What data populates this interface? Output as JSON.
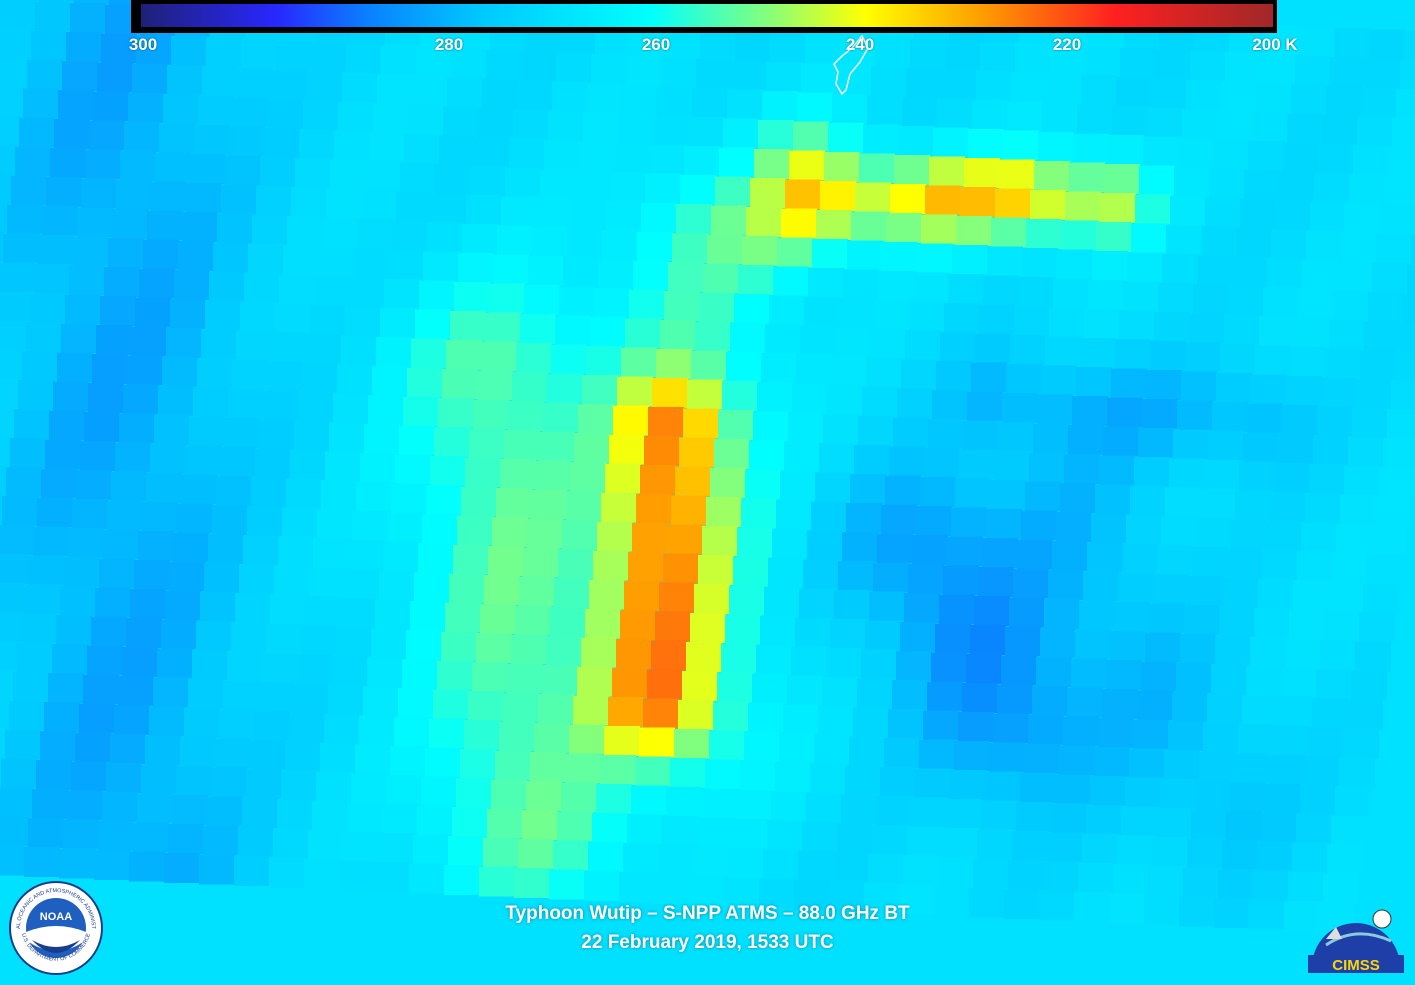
{
  "colorbar": {
    "labels": [
      "300",
      "280",
      "260",
      "240",
      "220",
      "200 K"
    ]
  },
  "caption": {
    "line1": "Typhoon Wutip – S-NPP ATMS – 88.0 GHz BT",
    "line2": "22 February 2019, 1533 UTC"
  },
  "logos": {
    "noaa": "NOAA",
    "noaa_ring_top": "NATIONAL OCEANIC AND ATMOSPHERIC ADMINISTRATION",
    "noaa_ring_bottom": "U.S. DEPARTMENT OF COMMERCE",
    "cimss": "CIMSS"
  }
}
